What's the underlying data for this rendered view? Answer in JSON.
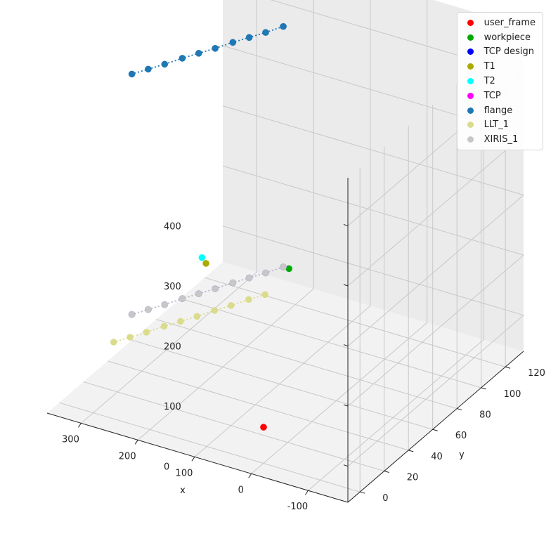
{
  "chart_data": {
    "type": "scatter3d",
    "title": "",
    "xlabel": "x",
    "ylabel": "y",
    "zlabel": "",
    "xlim": [
      -170,
      360
    ],
    "ylim": [
      -10,
      135
    ],
    "zlim": [
      -60,
      480
    ],
    "x_ticks": [
      -100,
      0,
      100,
      200,
      300
    ],
    "y_ticks": [
      0,
      20,
      40,
      60,
      80,
      100,
      120
    ],
    "z_ticks": [
      0,
      100,
      200,
      300,
      400
    ],
    "grid": true,
    "legend_position": "top-right",
    "series": [
      {
        "name": "user_frame",
        "color": "#ff0000",
        "line": false,
        "points": [
          {
            "x": 0,
            "y": 0,
            "z": 0
          }
        ]
      },
      {
        "name": "workpiece",
        "color": "#00aa00",
        "line": false,
        "points": [
          {
            "x": 190,
            "y": 110,
            "z": 20
          }
        ]
      },
      {
        "name": "TCP design",
        "color": "#0000ff",
        "line": "#9966ee",
        "points": [
          {
            "x": 200,
            "y": 110,
            "z": 20
          },
          {
            "x": 214,
            "y": 102,
            "z": 20
          },
          {
            "x": 228,
            "y": 95,
            "z": 20
          },
          {
            "x": 242,
            "y": 88,
            "z": 20
          },
          {
            "x": 256,
            "y": 80,
            "z": 20
          },
          {
            "x": 270,
            "y": 73,
            "z": 20
          },
          {
            "x": 284,
            "y": 66,
            "z": 20
          },
          {
            "x": 298,
            "y": 58,
            "z": 20
          },
          {
            "x": 312,
            "y": 51,
            "z": 20
          },
          {
            "x": 326,
            "y": 44,
            "z": 20
          }
        ]
      },
      {
        "name": "T1",
        "color": "#aaaa00",
        "line": false,
        "points": [
          {
            "x": 270,
            "y": 79,
            "z": 60
          }
        ]
      },
      {
        "name": "T2",
        "color": "#00ffff",
        "line": false,
        "points": [
          {
            "x": 275,
            "y": 78,
            "z": 70
          }
        ]
      },
      {
        "name": "TCP",
        "color": "#ff00ff",
        "line": false,
        "points": []
      },
      {
        "name": "flange",
        "color": "#1f77b4",
        "line": "#1f77b4",
        "points": [
          {
            "x": 200,
            "y": 110,
            "z": 420
          },
          {
            "x": 214,
            "y": 102,
            "z": 420
          },
          {
            "x": 228,
            "y": 95,
            "z": 420
          },
          {
            "x": 242,
            "y": 88,
            "z": 420
          },
          {
            "x": 256,
            "y": 80,
            "z": 420
          },
          {
            "x": 270,
            "y": 73,
            "z": 420
          },
          {
            "x": 284,
            "y": 66,
            "z": 420
          },
          {
            "x": 298,
            "y": 58,
            "z": 420
          },
          {
            "x": 312,
            "y": 51,
            "z": 420
          },
          {
            "x": 326,
            "y": 44,
            "z": 420
          }
        ]
      },
      {
        "name": "LLT_1",
        "color": "#dbdb8d",
        "line": "#dbdb8d",
        "points": [
          {
            "x": 200,
            "y": 95,
            "z": 0
          },
          {
            "x": 214,
            "y": 88,
            "z": 0
          },
          {
            "x": 228,
            "y": 80,
            "z": 0
          },
          {
            "x": 242,
            "y": 73,
            "z": 0
          },
          {
            "x": 256,
            "y": 65,
            "z": 0
          },
          {
            "x": 270,
            "y": 58,
            "z": 0
          },
          {
            "x": 284,
            "y": 51,
            "z": 0
          },
          {
            "x": 298,
            "y": 43,
            "z": 0
          },
          {
            "x": 312,
            "y": 36,
            "z": 0
          },
          {
            "x": 326,
            "y": 29,
            "z": 0
          }
        ]
      },
      {
        "name": "XIRIS_1",
        "color": "#c7c7c7",
        "line": "#c7c7c7",
        "points": [
          {
            "x": 200,
            "y": 110,
            "z": 20
          },
          {
            "x": 214,
            "y": 102,
            "z": 20
          },
          {
            "x": 228,
            "y": 95,
            "z": 20
          },
          {
            "x": 242,
            "y": 88,
            "z": 20
          },
          {
            "x": 256,
            "y": 80,
            "z": 20
          },
          {
            "x": 270,
            "y": 73,
            "z": 20
          },
          {
            "x": 284,
            "y": 66,
            "z": 20
          },
          {
            "x": 298,
            "y": 58,
            "z": 20
          },
          {
            "x": 312,
            "y": 51,
            "z": 20
          },
          {
            "x": 326,
            "y": 44,
            "z": 20
          }
        ]
      }
    ]
  }
}
